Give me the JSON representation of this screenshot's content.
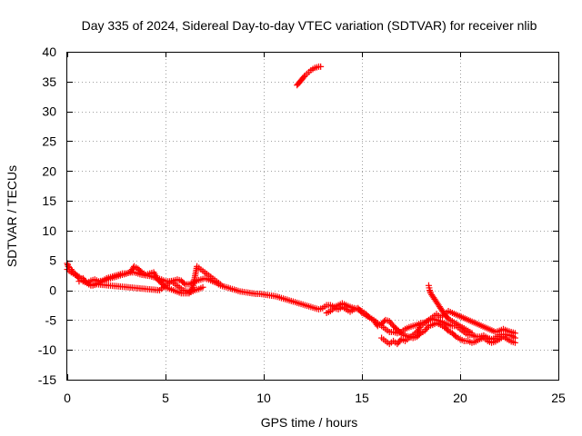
{
  "chart_data": {
    "type": "scatter",
    "title": "Day 335 of 2024, Sidereal Day-to-day VTEC variation (SDTVAR) for receiver nlib",
    "xlabel": "GPS time / hours",
    "ylabel": "SDTVAR / TECUs",
    "xlim": [
      0,
      25
    ],
    "ylim": [
      -15,
      40
    ],
    "xticks": [
      0,
      5,
      10,
      15,
      20,
      25
    ],
    "yticks": [
      -15,
      -10,
      -5,
      0,
      5,
      10,
      15,
      20,
      25,
      30,
      35,
      40
    ],
    "x_tick_labels": [
      "0",
      "5",
      "10",
      "15",
      "20",
      "25"
    ],
    "y_tick_labels": [
      "-15",
      "-10",
      "-5",
      "0",
      "5",
      "10",
      "15",
      "20",
      "25",
      "30",
      "35",
      "40"
    ],
    "grid": true,
    "marker": "plus",
    "colors": {
      "series": "#ff0000",
      "grid": "#a0a0a0",
      "axes": "#000000"
    },
    "series": [
      {
        "name": "SDTVAR",
        "segments": [
          {
            "x": [
              0,
              0.2,
              0.4,
              0.6,
              0.8,
              1.0,
              1.2,
              1.4,
              1.6,
              1.8,
              2.0,
              2.2,
              2.4,
              2.6,
              2.8,
              3.0,
              3.2,
              3.4,
              3.6,
              3.8,
              4.0,
              4.2,
              4.4,
              4.6,
              4.8,
              5.0,
              5.2,
              5.4,
              5.6,
              5.8,
              6.0,
              6.2,
              6.4,
              6.6,
              6.8,
              7.0,
              7.2,
              7.4,
              7.6,
              7.8,
              8.0,
              8.2,
              8.4,
              8.6,
              8.8,
              9.0,
              9.2,
              9.4,
              9.6,
              9.8,
              10.0,
              10.2,
              10.4,
              10.6,
              10.8,
              11.0,
              11.2,
              11.4,
              11.6,
              11.8,
              12.0,
              12.2,
              12.4,
              12.6,
              12.8,
              13.0,
              13.2,
              13.4,
              13.6,
              13.8,
              14.0,
              14.2,
              14.4,
              14.6,
              14.8,
              15.0,
              15.2,
              15.4,
              15.6,
              15.8,
              16.0,
              16.2,
              16.4,
              16.6,
              16.8,
              17.0,
              17.2,
              17.4,
              17.6,
              17.8,
              18.0,
              18.2,
              18.4,
              18.6,
              18.8,
              19.0,
              19.2,
              19.4,
              19.6,
              19.8,
              20.0,
              20.2,
              20.4,
              20.6,
              20.8,
              21.0,
              21.2,
              21.4,
              21.6,
              21.8,
              22.0,
              22.2,
              22.4,
              22.6,
              22.8
            ],
            "y": [
              3.5,
              3.0,
              2.6,
              2.0,
              1.5,
              1.2,
              1.6,
              1.8,
              1.5,
              1.6,
              2.0,
              2.2,
              2.4,
              2.6,
              2.8,
              2.8,
              3.0,
              3.0,
              2.8,
              2.6,
              2.5,
              2.4,
              2.2,
              2.0,
              1.8,
              1.5,
              1.5,
              1.6,
              1.8,
              1.6,
              1.0,
              1.0,
              1.3,
              1.6,
              1.8,
              2.0,
              1.8,
              1.5,
              1.2,
              0.8,
              0.6,
              0.4,
              0.2,
              0.0,
              -0.2,
              -0.3,
              -0.4,
              -0.5,
              -0.6,
              -0.6,
              -0.7,
              -0.8,
              -0.9,
              -1.0,
              -1.2,
              -1.4,
              -1.6,
              -1.8,
              -2.0,
              -2.2,
              -2.4,
              -2.6,
              -2.8,
              -3.0,
              -3.2,
              -3.0,
              -2.5,
              -2.5,
              -2.8,
              -2.5,
              -2.2,
              -2.5,
              -2.8,
              -3.0,
              -3.2,
              -3.5,
              -4.0,
              -4.6,
              -5.0,
              -5.5,
              -6.0,
              -6.5,
              -7.0,
              -7.0,
              -7.2,
              -7.0,
              -6.5,
              -6.2,
              -6.0,
              -5.8,
              -5.5,
              -5.4,
              -5.0,
              -4.8,
              -5.0,
              -5.2,
              -5.5,
              -5.8,
              -6.0,
              -6.0,
              -6.5,
              -7.0,
              -7.5,
              -7.5,
              -7.8,
              -7.8,
              -7.6,
              -8.0,
              -8.2,
              -8.0,
              -7.5,
              -7.4,
              -7.5,
              -7.6,
              -8.0
            ]
          },
          {
            "x": [
              0.6,
              0.8,
              1.0,
              1.2,
              1.6,
              2.0,
              2.4,
              2.8,
              3.2,
              3.4,
              3.6,
              3.8,
              4.0,
              4.4,
              4.6,
              5.0,
              5.4,
              5.8,
              6.2,
              6.4,
              6.6,
              6.8,
              7.0,
              7.2,
              7.4,
              7.6,
              7.8
            ],
            "y": [
              1.5,
              2.0,
              1.2,
              0.8,
              1.2,
              1.8,
              2.2,
              2.6,
              3.0,
              4.0,
              3.6,
              3.0,
              2.6,
              3.0,
              1.8,
              0.5,
              0.0,
              -0.5,
              -0.5,
              0.5,
              4.0,
              3.5,
              3.0,
              2.5,
              2.0,
              1.5,
              1.0
            ]
          },
          {
            "x": [
              0,
              0.05,
              0.1,
              0.2,
              0.3,
              0.5,
              0.7,
              0.9,
              1.1,
              1.3,
              1.5,
              4.7,
              4.9,
              5.1,
              5.3,
              5.5,
              5.7,
              5.9,
              6.1,
              6.3,
              6.5,
              6.7,
              6.9
            ],
            "y": [
              4.5,
              4.0,
              3.8,
              3.5,
              3.0,
              2.5,
              2.0,
              1.5,
              1.0,
              0.8,
              1.0,
              0.0,
              0.5,
              1.0,
              1.5,
              1.0,
              0.5,
              0.0,
              -0.2,
              -0.3,
              0.0,
              0.2,
              0.5
            ]
          },
          {
            "x": [
              13.2,
              13.4,
              13.6,
              13.8,
              14.0,
              14.2,
              14.4,
              14.6,
              14.8,
              15.0,
              15.2,
              15.4,
              15.6,
              15.8,
              16.0,
              16.2,
              16.4,
              16.6,
              16.8,
              17.0,
              17.2,
              17.4,
              17.6,
              17.8,
              18.0,
              18.2,
              18.4,
              18.6,
              18.8,
              19.0,
              19.2,
              19.4,
              19.6,
              19.8,
              20.0,
              20.2,
              20.4,
              20.6,
              20.8,
              21.0,
              21.2,
              21.4,
              21.6,
              21.8,
              22.0,
              22.2,
              22.4,
              22.6,
              22.8
            ],
            "y": [
              -3.8,
              -3.5,
              -3.0,
              -3.2,
              -2.8,
              -3.2,
              -3.6,
              -3.2,
              -3.0,
              -3.8,
              -4.2,
              -4.6,
              -5.0,
              -6.0,
              -5.6,
              -5.0,
              -5.2,
              -6.0,
              -6.6,
              -7.2,
              -7.6,
              -7.8,
              -8.0,
              -7.8,
              -7.2,
              -6.8,
              -6.0,
              -5.8,
              -5.5,
              -5.8,
              -6.2,
              -6.8,
              -7.2,
              -7.8,
              -8.2,
              -8.5,
              -8.5,
              -8.8,
              -8.6,
              -8.2,
              -8.0,
              -8.5,
              -8.8,
              -8.6,
              -8.2,
              -7.8,
              -8.2,
              -8.6,
              -8.8
            ]
          },
          {
            "x": [
              16.0,
              16.2,
              16.4,
              16.6,
              16.8,
              17.0,
              17.2,
              17.4,
              17.6,
              17.8,
              18.0,
              18.2,
              18.4,
              18.6,
              18.8,
              19.0,
              19.2,
              19.4,
              19.6,
              21.8,
              22.0,
              22.2,
              22.4,
              22.6,
              22.8
            ],
            "y": [
              -8.0,
              -8.5,
              -9.0,
              -8.5,
              -9.0,
              -8.2,
              -8.5,
              -8.0,
              -7.5,
              -7.0,
              -6.0,
              -5.5,
              -5.0,
              -4.5,
              -4.0,
              -4.5,
              -4.0,
              -3.5,
              -3.8,
              -7.0,
              -6.8,
              -6.5,
              -6.8,
              -7.0,
              -7.2
            ]
          },
          {
            "x": [
              18.4,
              18.45,
              18.5,
              18.6,
              18.7,
              18.8,
              18.9,
              19.0,
              19.1,
              19.2,
              19.3,
              19.4,
              19.6,
              19.8,
              20.0,
              20.2,
              20.4,
              20.6
            ],
            "y": [
              0.8,
              0.0,
              -0.5,
              -1.0,
              -1.5,
              -2.0,
              -2.5,
              -3.0,
              -3.5,
              -4.0,
              -4.4,
              -4.8,
              -5.2,
              -5.6,
              -6.0,
              -6.4,
              -6.8,
              -7.2
            ]
          },
          {
            "x": [
              11.7,
              11.8,
              11.9,
              12.0,
              12.1,
              12.2,
              12.3,
              12.4,
              12.5,
              12.6,
              12.7,
              12.8,
              12.9
            ],
            "y": [
              34.4,
              34.8,
              35.2,
              35.6,
              36.0,
              36.3,
              36.6,
              36.9,
              37.1,
              37.3,
              37.4,
              37.5,
              37.5
            ]
          }
        ]
      }
    ]
  }
}
